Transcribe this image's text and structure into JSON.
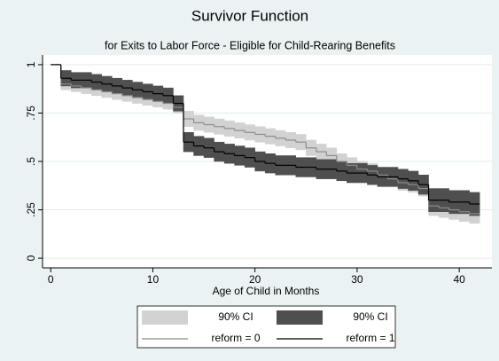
{
  "chart_data": {
    "type": "survival",
    "title": "Survivor Function",
    "subtitle": "for Exits to Labor Force - Eligible for Child-Rearing Benefits",
    "x_label": "Age of Child in Months",
    "xlim": [
      -0.8,
      43.2
    ],
    "xticks": [
      0,
      10,
      20,
      30,
      40
    ],
    "ylim": [
      -0.05,
      1.05
    ],
    "yticks": [
      0,
      {
        "value": 0.25,
        "label": ".25"
      },
      {
        "value": 0.5,
        "label": ".5"
      },
      {
        "value": 0.75,
        "label": ".75"
      },
      1
    ],
    "grid": true,
    "x": [
      0,
      1,
      2,
      3,
      4,
      5,
      6,
      7,
      8,
      9,
      10,
      11,
      12,
      13,
      14,
      15,
      16,
      17,
      18,
      19,
      20,
      21,
      22,
      23,
      24,
      25,
      26,
      27,
      28,
      29,
      30,
      31,
      32,
      33,
      34,
      35,
      36,
      37,
      38,
      39,
      40,
      41,
      42
    ],
    "series": [
      {
        "name": "reform = 0",
        "color": "#8c8c8c",
        "ci_name": "90% CI",
        "ci_color": "#d2d2d2",
        "values": [
          1,
          0.9,
          0.89,
          0.88,
          0.87,
          0.86,
          0.85,
          0.84,
          0.83,
          0.82,
          0.81,
          0.8,
          0.78,
          0.72,
          0.7,
          0.69,
          0.68,
          0.67,
          0.66,
          0.65,
          0.64,
          0.63,
          0.62,
          0.61,
          0.6,
          0.57,
          0.55,
          0.53,
          0.5,
          0.48,
          0.46,
          0.45,
          0.43,
          0.41,
          0.39,
          0.38,
          0.36,
          0.27,
          0.26,
          0.25,
          0.24,
          0.23,
          0.23
        ],
        "lower": [
          1,
          0.87,
          0.86,
          0.85,
          0.84,
          0.83,
          0.82,
          0.81,
          0.8,
          0.79,
          0.78,
          0.77,
          0.75,
          0.68,
          0.66,
          0.65,
          0.64,
          0.63,
          0.62,
          0.61,
          0.6,
          0.59,
          0.58,
          0.57,
          0.56,
          0.53,
          0.51,
          0.49,
          0.46,
          0.44,
          0.42,
          0.41,
          0.39,
          0.37,
          0.35,
          0.34,
          0.32,
          0.22,
          0.21,
          0.2,
          0.19,
          0.18,
          0.18
        ],
        "upper": [
          1,
          0.93,
          0.92,
          0.91,
          0.9,
          0.89,
          0.88,
          0.87,
          0.86,
          0.85,
          0.84,
          0.83,
          0.81,
          0.76,
          0.74,
          0.73,
          0.72,
          0.71,
          0.7,
          0.69,
          0.68,
          0.67,
          0.66,
          0.65,
          0.64,
          0.61,
          0.59,
          0.57,
          0.54,
          0.52,
          0.5,
          0.49,
          0.47,
          0.45,
          0.43,
          0.42,
          0.4,
          0.32,
          0.31,
          0.3,
          0.29,
          0.28,
          0.28
        ]
      },
      {
        "name": "reform = 1",
        "color": "#000000",
        "ci_name": "90% CI",
        "ci_color": "#4f4f4f",
        "values": [
          1,
          0.93,
          0.92,
          0.92,
          0.91,
          0.9,
          0.89,
          0.88,
          0.87,
          0.86,
          0.85,
          0.84,
          0.8,
          0.6,
          0.58,
          0.57,
          0.55,
          0.54,
          0.53,
          0.52,
          0.5,
          0.49,
          0.48,
          0.48,
          0.47,
          0.47,
          0.46,
          0.46,
          0.45,
          0.44,
          0.44,
          0.43,
          0.42,
          0.42,
          0.41,
          0.4,
          0.38,
          0.3,
          0.3,
          0.29,
          0.29,
          0.28,
          0.28
        ],
        "lower": [
          1,
          0.89,
          0.88,
          0.88,
          0.87,
          0.86,
          0.85,
          0.84,
          0.83,
          0.82,
          0.81,
          0.8,
          0.76,
          0.55,
          0.53,
          0.52,
          0.5,
          0.49,
          0.48,
          0.47,
          0.45,
          0.44,
          0.43,
          0.43,
          0.42,
          0.42,
          0.41,
          0.41,
          0.4,
          0.39,
          0.39,
          0.38,
          0.37,
          0.37,
          0.36,
          0.35,
          0.33,
          0.24,
          0.24,
          0.23,
          0.23,
          0.22,
          0.22
        ],
        "upper": [
          1,
          0.97,
          0.96,
          0.96,
          0.95,
          0.94,
          0.93,
          0.92,
          0.91,
          0.9,
          0.89,
          0.88,
          0.84,
          0.65,
          0.63,
          0.62,
          0.6,
          0.59,
          0.58,
          0.57,
          0.55,
          0.54,
          0.53,
          0.53,
          0.52,
          0.52,
          0.51,
          0.51,
          0.5,
          0.49,
          0.49,
          0.48,
          0.47,
          0.47,
          0.46,
          0.45,
          0.43,
          0.36,
          0.36,
          0.35,
          0.35,
          0.34,
          0.34
        ]
      }
    ]
  }
}
